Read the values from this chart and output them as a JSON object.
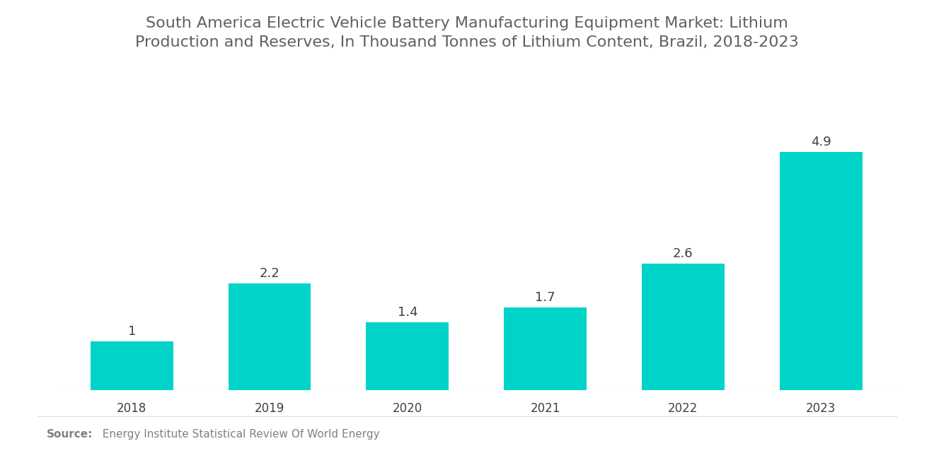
{
  "title": "South America Electric Vehicle Battery Manufacturing Equipment Market: Lithium\nProduction and Reserves, In Thousand Tonnes of Lithium Content, Brazil, 2018-2023",
  "categories": [
    "2018",
    "2019",
    "2020",
    "2021",
    "2022",
    "2023"
  ],
  "values": [
    1.0,
    2.2,
    1.4,
    1.7,
    2.6,
    4.9
  ],
  "bar_color": "#00D4C8",
  "label_color": "#404040",
  "title_color": "#606060",
  "source_bold": "Source:",
  "source_text": "  Energy Institute Statistical Review Of World Energy",
  "source_color": "#808080",
  "background_color": "#ffffff",
  "ylim": [
    0,
    5.8
  ],
  "bar_width": 0.6,
  "title_fontsize": 16,
  "label_fontsize": 13,
  "tick_fontsize": 12,
  "source_fontsize": 11
}
